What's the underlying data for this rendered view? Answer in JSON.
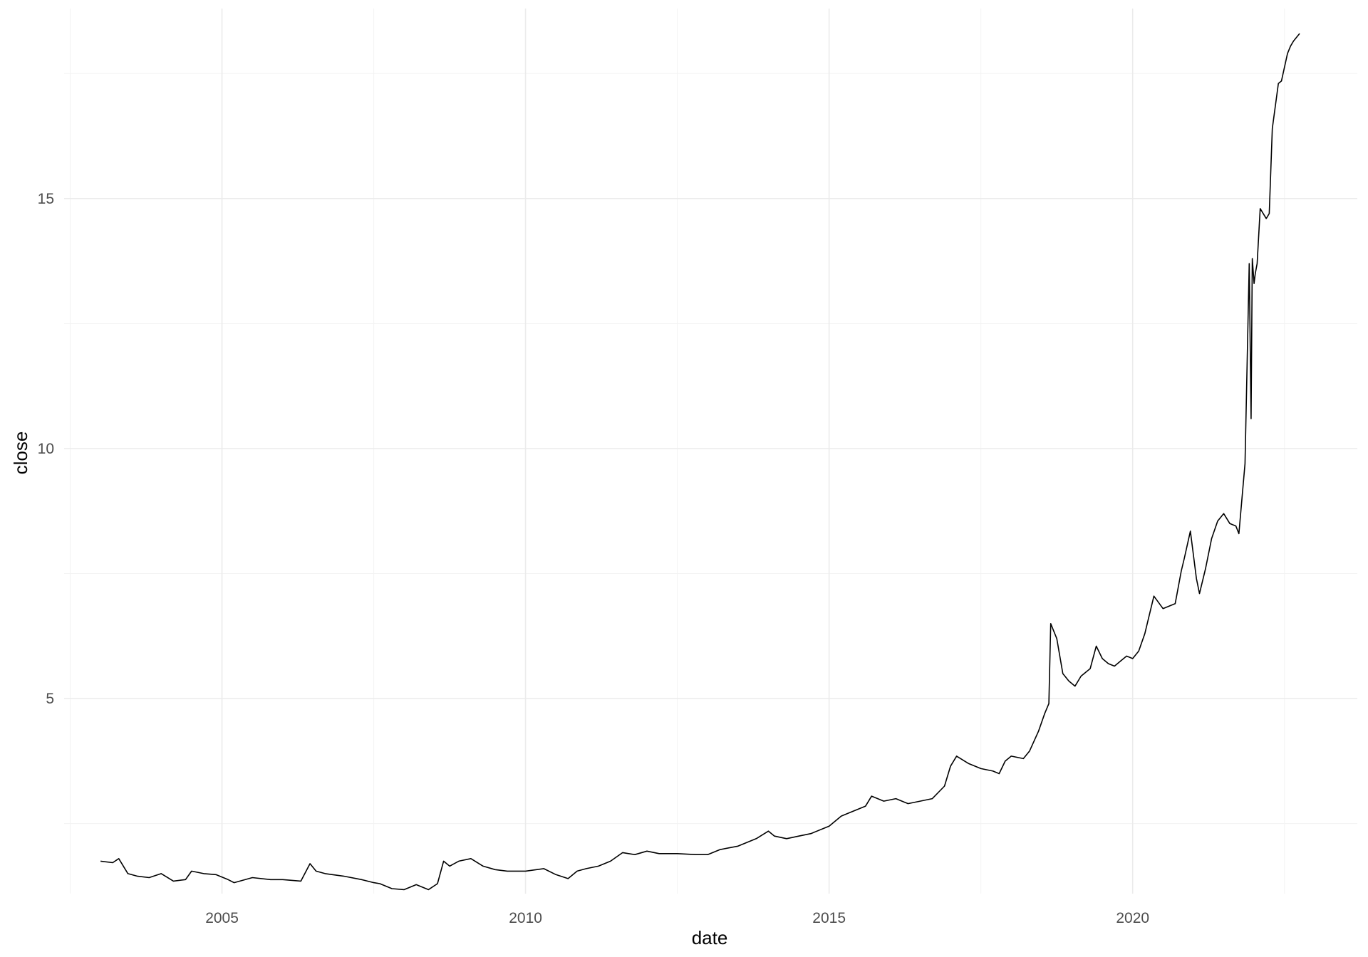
{
  "chart_data": {
    "type": "line",
    "title": "",
    "xlabel": "date",
    "ylabel": "close",
    "xlim": [
      2002.4,
      2023.7
    ],
    "ylim": [
      1.1,
      18.8
    ],
    "x_major_ticks": [
      2005,
      2010,
      2015,
      2020
    ],
    "x_tick_labels": [
      "2005",
      "2010",
      "2015",
      "2020"
    ],
    "x_minor_ticks": [
      2002.5,
      2007.5,
      2012.5,
      2017.5,
      2022.5
    ],
    "y_major_ticks": [
      5,
      10,
      15
    ],
    "y_tick_labels": [
      "5",
      "10",
      "15"
    ],
    "y_minor_ticks": [
      2.5,
      7.5,
      12.5,
      17.5
    ],
    "grid": true,
    "legend": "none",
    "line_color": "#000000",
    "series": [
      {
        "x": [
          2003.0,
          2003.2,
          2003.3,
          2003.45,
          2003.6,
          2003.8,
          2004.0,
          2004.2,
          2004.4,
          2004.5,
          2004.7,
          2004.9,
          2005.1,
          2005.2,
          2005.5,
          2005.8,
          2006.0,
          2006.3,
          2006.45,
          2006.55,
          2006.7,
          2007.0,
          2007.3,
          2007.5,
          2007.6,
          2007.8,
          2008.0,
          2008.2,
          2008.4,
          2008.55,
          2008.65,
          2008.75,
          2008.9,
          2009.1,
          2009.3,
          2009.5,
          2009.7,
          2010.0,
          2010.3,
          2010.5,
          2010.7,
          2010.85,
          2011.0,
          2011.2,
          2011.4,
          2011.6,
          2011.8,
          2012.0,
          2012.2,
          2012.5,
          2012.8,
          2013.0,
          2013.2,
          2013.5,
          2013.8,
          2014.0,
          2014.1,
          2014.3,
          2014.5,
          2014.7,
          2014.9,
          2015.0,
          2015.2,
          2015.4,
          2015.6,
          2015.7,
          2015.9,
          2016.1,
          2016.3,
          2016.5,
          2016.7,
          2016.9,
          2017.0,
          2017.1,
          2017.3,
          2017.5,
          2017.7,
          2017.8,
          2017.9,
          2018.0,
          2018.2,
          2018.3,
          2018.45,
          2018.55,
          2018.62,
          2018.65,
          2018.75,
          2018.85,
          2018.95,
          2019.05,
          2019.15,
          2019.3,
          2019.4,
          2019.5,
          2019.6,
          2019.7,
          2019.8,
          2019.9,
          2020.0,
          2020.1,
          2020.2,
          2020.25,
          2020.35,
          2020.5,
          2020.6,
          2020.7,
          2020.8,
          2020.85,
          2020.95,
          2021.05,
          2021.1,
          2021.2,
          2021.3,
          2021.4,
          2021.5,
          2021.6,
          2021.7,
          2021.75,
          2021.8,
          2021.85,
          2021.92,
          2021.95,
          2021.97,
          2022.0,
          2022.02,
          2022.05,
          2022.1,
          2022.2,
          2022.25,
          2022.3,
          2022.4,
          2022.45,
          2022.55,
          2022.6,
          2022.65,
          2022.75
        ],
        "y": [
          1.75,
          1.72,
          1.8,
          1.5,
          1.45,
          1.42,
          1.5,
          1.35,
          1.38,
          1.55,
          1.5,
          1.48,
          1.38,
          1.32,
          1.42,
          1.38,
          1.38,
          1.35,
          1.7,
          1.55,
          1.5,
          1.45,
          1.38,
          1.32,
          1.3,
          1.2,
          1.18,
          1.28,
          1.18,
          1.3,
          1.75,
          1.65,
          1.75,
          1.8,
          1.65,
          1.58,
          1.55,
          1.55,
          1.6,
          1.48,
          1.4,
          1.55,
          1.6,
          1.65,
          1.75,
          1.92,
          1.88,
          1.95,
          1.9,
          1.9,
          1.88,
          1.88,
          1.98,
          2.05,
          2.2,
          2.35,
          2.25,
          2.2,
          2.25,
          2.3,
          2.4,
          2.45,
          2.65,
          2.75,
          2.85,
          3.05,
          2.95,
          3.0,
          2.9,
          2.95,
          3.0,
          3.25,
          3.65,
          3.85,
          3.7,
          3.6,
          3.55,
          3.5,
          3.75,
          3.85,
          3.8,
          3.95,
          4.35,
          4.7,
          4.9,
          6.5,
          6.2,
          5.5,
          5.35,
          5.25,
          5.45,
          5.6,
          6.05,
          5.8,
          5.7,
          5.65,
          5.75,
          5.85,
          5.8,
          5.95,
          6.3,
          6.55,
          7.05,
          6.8,
          6.85,
          6.9,
          7.55,
          7.8,
          8.35,
          7.4,
          7.1,
          7.6,
          8.2,
          8.55,
          8.7,
          8.5,
          8.45,
          8.3,
          9.0,
          9.7,
          13.7,
          10.6,
          13.8,
          13.3,
          13.5,
          13.7,
          14.8,
          14.6,
          14.7,
          16.4,
          17.3,
          17.35,
          17.9,
          18.05,
          18.15,
          18.3
        ]
      }
    ]
  }
}
